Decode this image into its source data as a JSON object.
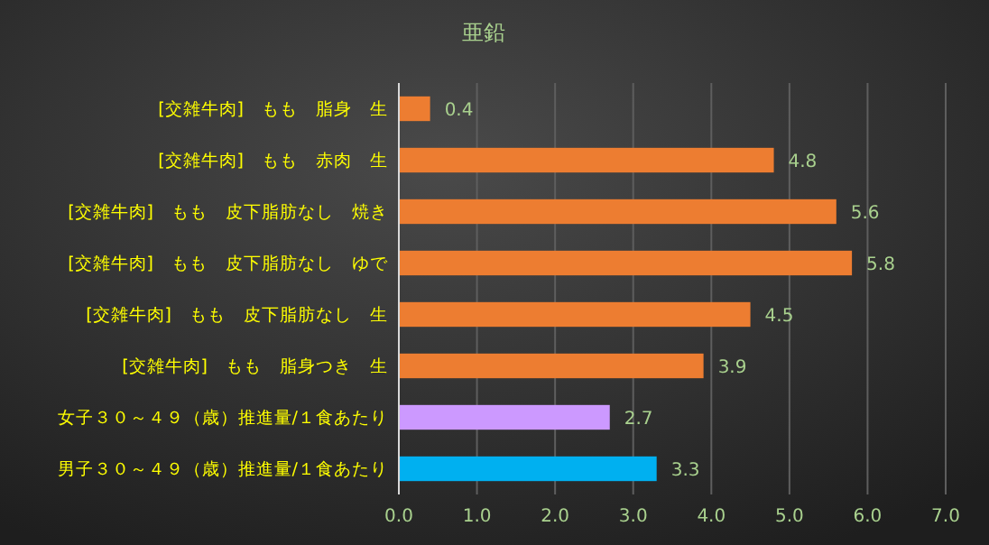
{
  "chart_data": {
    "type": "bar",
    "orientation": "horizontal",
    "title": "亜鉛",
    "categories": [
      "[交雑牛肉]　もも　脂身　生",
      "[交雑牛肉]　もも　赤肉　生",
      "[交雑牛肉]　もも　皮下脂肪なし　焼き",
      "[交雑牛肉]　もも　皮下脂肪なし　ゆで",
      "[交雑牛肉]　もも　皮下脂肪なし　生",
      "[交雑牛肉]　もも　脂身つき　生",
      "女子３０～４９（歳）推進量/１食あたり",
      "男子３０～４９（歳）推進量/１食あたり"
    ],
    "values": [
      0.4,
      4.8,
      5.6,
      5.8,
      4.5,
      3.9,
      2.7,
      3.3
    ],
    "colors": [
      "#ed7d31",
      "#ed7d31",
      "#ed7d31",
      "#ed7d31",
      "#ed7d31",
      "#ed7d31",
      "#cc99ff",
      "#00b0f0"
    ],
    "xlim": [
      0,
      7
    ],
    "xticks": [
      {
        "value": 0,
        "label": "0.0"
      },
      {
        "value": 1,
        "label": "1.0"
      },
      {
        "value": 2,
        "label": "2.0"
      },
      {
        "value": 3,
        "label": "3.0"
      },
      {
        "value": 4,
        "label": "4.0"
      },
      {
        "value": 5,
        "label": "5.0"
      },
      {
        "value": 6,
        "label": "6.0"
      },
      {
        "value": 7,
        "label": "7.0"
      }
    ],
    "grid": "x",
    "data_labels": true
  }
}
